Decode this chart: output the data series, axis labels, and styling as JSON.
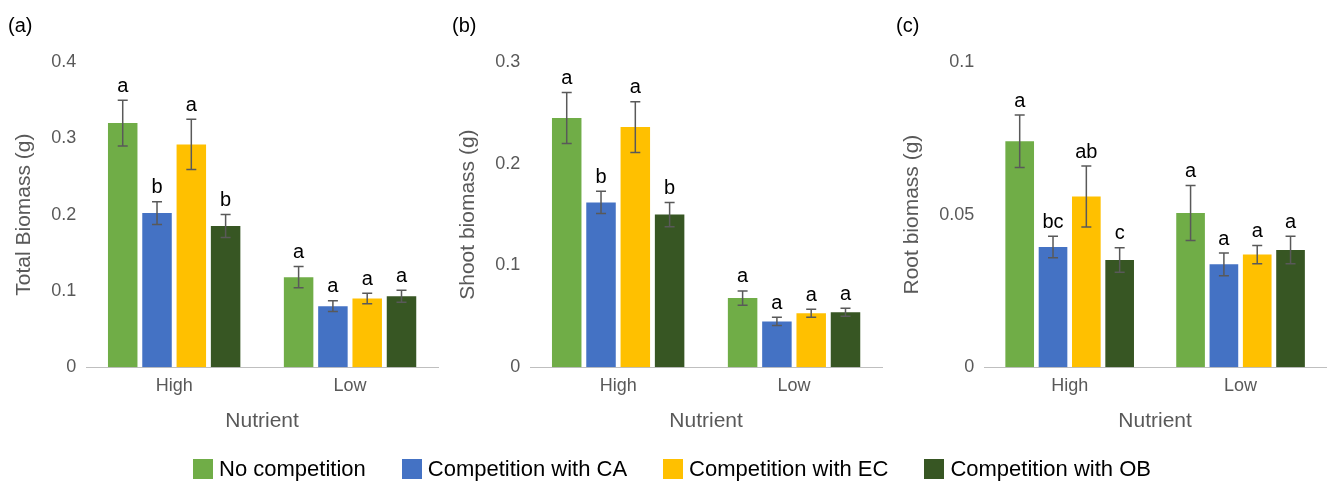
{
  "chart_data": [
    {
      "type": "bar",
      "title": "(a)",
      "xlabel": "Nutrient",
      "ylabel": "Total Biomass (g)",
      "categories": [
        "High",
        "Low"
      ],
      "ylim": [
        0,
        0.4
      ],
      "yticks": [
        0,
        0.1,
        0.2,
        0.3,
        0.4
      ],
      "grid": false,
      "legend": "bottom",
      "series": [
        {
          "name": "No competition",
          "color": "#70ad47",
          "values": [
            0.32,
            0.118
          ],
          "errors": [
            0.03,
            0.014
          ],
          "value_labels": [
            "a",
            "a"
          ]
        },
        {
          "name": "Competition with CA",
          "color": "#4472c4",
          "values": [
            0.202,
            0.08
          ],
          "errors": [
            0.015,
            0.007
          ],
          "value_labels": [
            "b",
            "a"
          ]
        },
        {
          "name": "Competition with EC",
          "color": "#ffc000",
          "values": [
            0.292,
            0.09
          ],
          "errors": [
            0.033,
            0.007
          ],
          "value_labels": [
            "a",
            "a"
          ]
        },
        {
          "name": "Competition with OB",
          "color": "#375623",
          "values": [
            0.185,
            0.093
          ],
          "errors": [
            0.015,
            0.008
          ],
          "value_labels": [
            "b",
            "a"
          ]
        }
      ]
    },
    {
      "type": "bar",
      "title": "(b)",
      "xlabel": "Nutrient",
      "ylabel": "Shoot biomass (g)",
      "categories": [
        "High",
        "Low"
      ],
      "ylim": [
        0,
        0.3
      ],
      "yticks": [
        0,
        0.1,
        0.2,
        0.3
      ],
      "grid": false,
      "series": [
        {
          "color": "#70ad47",
          "values": [
            0.245,
            0.068
          ],
          "errors": [
            0.025,
            0.007
          ],
          "value_labels": [
            "a",
            "a"
          ]
        },
        {
          "color": "#4472c4",
          "values": [
            0.162,
            0.045
          ],
          "errors": [
            0.011,
            0.004
          ],
          "value_labels": [
            "b",
            "a"
          ]
        },
        {
          "color": "#ffc000",
          "values": [
            0.236,
            0.053
          ],
          "errors": [
            0.025,
            0.004
          ],
          "value_labels": [
            "a",
            "a"
          ]
        },
        {
          "color": "#375623",
          "values": [
            0.15,
            0.054
          ],
          "errors": [
            0.012,
            0.004
          ],
          "value_labels": [
            "b",
            "a"
          ]
        }
      ]
    },
    {
      "type": "bar",
      "title": "(c)",
      "xlabel": "Nutrient",
      "ylabel": "Root biomass (g)",
      "categories": [
        "High",
        "Low"
      ],
      "ylim": [
        0,
        0.1
      ],
      "yticks": [
        0,
        0.05,
        0.1
      ],
      "grid": false,
      "series": [
        {
          "color": "#70ad47",
          "values": [
            0.074,
            0.0505
          ],
          "errors": [
            0.0086,
            0.009
          ],
          "value_labels": [
            "a",
            "a"
          ]
        },
        {
          "color": "#4472c4",
          "values": [
            0.0394,
            0.0337
          ],
          "errors": [
            0.0035,
            0.0037
          ],
          "value_labels": [
            "bc",
            "a"
          ]
        },
        {
          "color": "#ffc000",
          "values": [
            0.0559,
            0.0369
          ],
          "errors": [
            0.01,
            0.003
          ],
          "value_labels": [
            "ab",
            "a"
          ]
        },
        {
          "color": "#375623",
          "values": [
            0.0351,
            0.0384
          ],
          "errors": [
            0.004,
            0.0045
          ],
          "value_labels": [
            "c",
            "a"
          ]
        }
      ]
    }
  ]
}
